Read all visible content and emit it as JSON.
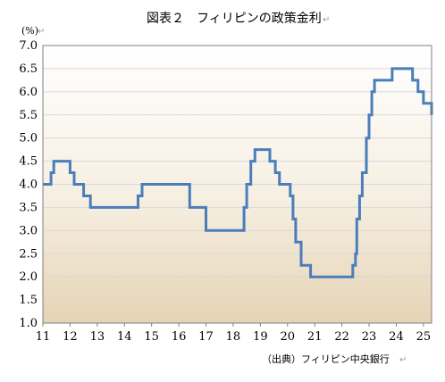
{
  "chart_data": {
    "type": "line",
    "title": "図表２　フィリピンの政策金利",
    "unit_label": "(%)",
    "source": "（出典）フィリピン中央銀行",
    "x_ticks": [
      "11",
      "12",
      "13",
      "14",
      "15",
      "16",
      "17",
      "18",
      "19",
      "20",
      "21",
      "22",
      "23",
      "24",
      "25"
    ],
    "y_ticks": [
      "1.0",
      "1.5",
      "2.0",
      "2.5",
      "3.0",
      "3.5",
      "4.0",
      "4.5",
      "5.0",
      "5.5",
      "6.0",
      "6.5",
      "7.0"
    ],
    "xlim": [
      2011,
      2025.3
    ],
    "ylim": [
      1.0,
      7.0
    ],
    "step": true,
    "background": "gradient white to tan",
    "series": [
      {
        "color": "#4a7ebb",
        "points": [
          [
            2011.0,
            4.0
          ],
          [
            2011.3,
            4.25
          ],
          [
            2011.4,
            4.5
          ],
          [
            2012.0,
            4.25
          ],
          [
            2012.15,
            4.0
          ],
          [
            2012.5,
            3.75
          ],
          [
            2012.75,
            3.5
          ],
          [
            2014.5,
            3.75
          ],
          [
            2014.65,
            4.0
          ],
          [
            2016.4,
            3.5
          ],
          [
            2017.0,
            3.0
          ],
          [
            2018.4,
            3.5
          ],
          [
            2018.5,
            4.0
          ],
          [
            2018.65,
            4.5
          ],
          [
            2018.8,
            4.75
          ],
          [
            2019.35,
            4.5
          ],
          [
            2019.55,
            4.25
          ],
          [
            2019.7,
            4.0
          ],
          [
            2020.1,
            3.75
          ],
          [
            2020.2,
            3.25
          ],
          [
            2020.3,
            2.75
          ],
          [
            2020.5,
            2.25
          ],
          [
            2020.85,
            2.0
          ],
          [
            2022.4,
            2.25
          ],
          [
            2022.5,
            2.5
          ],
          [
            2022.55,
            3.25
          ],
          [
            2022.65,
            3.75
          ],
          [
            2022.75,
            4.25
          ],
          [
            2022.9,
            5.0
          ],
          [
            2023.0,
            5.5
          ],
          [
            2023.1,
            6.0
          ],
          [
            2023.2,
            6.25
          ],
          [
            2023.85,
            6.5
          ],
          [
            2024.6,
            6.25
          ],
          [
            2024.8,
            6.0
          ],
          [
            2025.0,
            5.75
          ],
          [
            2025.3,
            5.5
          ]
        ]
      }
    ]
  }
}
